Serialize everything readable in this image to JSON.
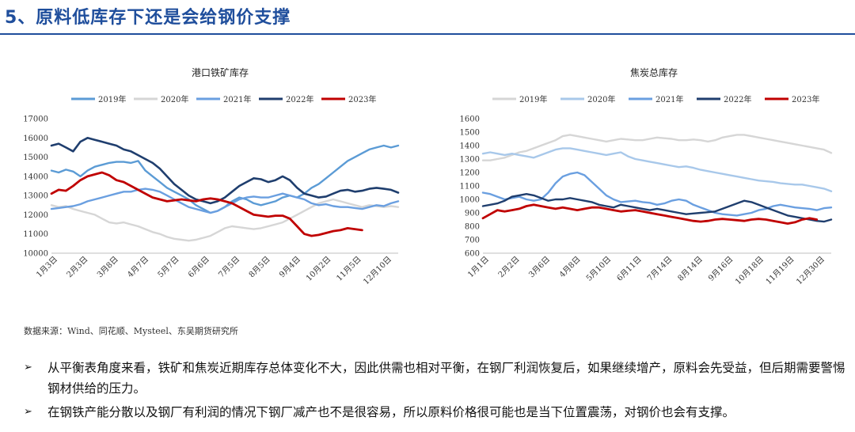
{
  "page": {
    "title": "5、原料低库存下还是会给钢价支撑",
    "source": "数据来源：Wind、同花顺、Mysteel、东吴期货研究所",
    "bullets": [
      {
        "marker": "➢",
        "text": "从平衡表角度来看，铁矿和焦炭近期库存总体变化不大，因此供需也相对平衡，在钢厂利润恢复后，如果继续增产，原料会先受益，但后期需要警惕钢材供给的压力。"
      },
      {
        "marker": "➢",
        "text": "在钢铁产能分散以及钢厂有利润的情况下钢厂减产也不是很容易，所以原料价格很可能也是当下位置震荡，对钢价也会有支撑。"
      }
    ]
  },
  "chart_data": [
    {
      "type": "line",
      "title": "港口铁矿库存",
      "xlabel": "",
      "ylabel": "",
      "ylim": [
        10000,
        17000
      ],
      "yticks": [
        10000,
        11000,
        12000,
        13000,
        14000,
        15000,
        16000,
        17000
      ],
      "xticks": [
        "1月3日",
        "2月3日",
        "3月8日",
        "4月7日",
        "5月7日",
        "6月6日",
        "7月5日",
        "8月5日",
        "9月4日",
        "10月2日",
        "11月5日",
        "12月10日"
      ],
      "legend_position": "top",
      "grid": false,
      "series": [
        {
          "name": "2019年",
          "color": "#5b9bd5",
          "width": 2.4,
          "values": [
            14300,
            14200,
            14350,
            14250,
            14000,
            14300,
            14500,
            14600,
            14700,
            14750,
            14750,
            14700,
            14800,
            14300,
            14000,
            13700,
            13400,
            13200,
            13000,
            12800,
            12500,
            12300,
            12100,
            12200,
            12400,
            12700,
            12900,
            12800,
            12600,
            12500,
            12600,
            12700,
            12900,
            13000,
            12900,
            13100,
            13400,
            13600,
            13900,
            14200,
            14500,
            14800,
            15000,
            15200,
            15400,
            15500,
            15600,
            15500,
            15600
          ]
        },
        {
          "name": "2020年",
          "color": "#d6d6d6",
          "width": 2.4,
          "values": [
            12500,
            12400,
            12450,
            12300,
            12200,
            12100,
            12000,
            11800,
            11600,
            11550,
            11600,
            11500,
            11400,
            11250,
            11100,
            11000,
            10850,
            10750,
            10700,
            10650,
            10700,
            10800,
            10900,
            11100,
            11300,
            11400,
            11350,
            11300,
            11250,
            11300,
            11400,
            11500,
            11600,
            11800,
            12000,
            12200,
            12400,
            12600,
            12700,
            12800,
            12700,
            12600,
            12500,
            12400,
            12500,
            12450,
            12400,
            12450,
            12400
          ]
        },
        {
          "name": "2021年",
          "color": "#6a9fe0",
          "width": 2.4,
          "values": [
            12300,
            12350,
            12400,
            12450,
            12550,
            12700,
            12800,
            12900,
            13000,
            13100,
            13200,
            13200,
            13300,
            13350,
            13300,
            13200,
            13000,
            12800,
            12600,
            12400,
            12300,
            12200,
            12100,
            12200,
            12400,
            12600,
            12800,
            12900,
            12950,
            12900,
            12900,
            13000,
            13100,
            13000,
            12900,
            12800,
            12600,
            12500,
            12550,
            12450,
            12400,
            12400,
            12350,
            12300,
            12400,
            12500,
            12450,
            12600,
            12700
          ]
        },
        {
          "name": "2022年",
          "color": "#1f3e6e",
          "width": 2.6,
          "values": [
            15600,
            15700,
            15500,
            15300,
            15800,
            16000,
            15900,
            15800,
            15700,
            15600,
            15400,
            15300,
            15100,
            14900,
            14700,
            14400,
            14000,
            13600,
            13300,
            13000,
            12800,
            12700,
            12600,
            12700,
            12900,
            13200,
            13500,
            13700,
            13900,
            13850,
            13700,
            13800,
            14000,
            13800,
            13400,
            13100,
            13000,
            12900,
            12950,
            13100,
            13250,
            13300,
            13200,
            13250,
            13350,
            13400,
            13350,
            13300,
            13150
          ]
        },
        {
          "name": "2023年",
          "color": "#c00000",
          "width": 2.8,
          "values": [
            13100,
            13300,
            13250,
            13500,
            13800,
            14000,
            14100,
            14200,
            14050,
            13800,
            13700,
            13500,
            13300,
            13100,
            12900,
            12800,
            12700,
            12750,
            12800,
            12750,
            12700,
            12800,
            12850,
            12800,
            12700,
            12600,
            12400,
            12200,
            12000,
            11950,
            11900,
            11950,
            11950,
            11800,
            11400,
            11000,
            10900,
            10950,
            11050,
            11150,
            11200,
            11300,
            11250,
            11200
          ]
        }
      ]
    },
    {
      "type": "line",
      "title": "焦炭总库存",
      "xlabel": "",
      "ylabel": "",
      "ylim": [
        600,
        1600
      ],
      "yticks": [
        600,
        700,
        800,
        900,
        1000,
        1100,
        1200,
        1300,
        1400,
        1500,
        1600
      ],
      "xticks": [
        "1月1日",
        "2月2日",
        "3月6日",
        "4月8日",
        "5月10日",
        "6月11日",
        "7月14日",
        "8月14日",
        "9月16日",
        "10月18日",
        "11月19日",
        "12月30日"
      ],
      "legend_position": "top",
      "grid": false,
      "series": [
        {
          "name": "2019年",
          "color": "#d6d6d6",
          "width": 2.4,
          "values": [
            1290,
            1290,
            1300,
            1310,
            1330,
            1350,
            1360,
            1380,
            1400,
            1420,
            1440,
            1470,
            1480,
            1470,
            1460,
            1450,
            1440,
            1430,
            1440,
            1450,
            1445,
            1440,
            1440,
            1450,
            1460,
            1455,
            1450,
            1440,
            1440,
            1445,
            1440,
            1430,
            1440,
            1460,
            1470,
            1480,
            1480,
            1470,
            1460,
            1450,
            1440,
            1430,
            1420,
            1410,
            1400,
            1390,
            1380,
            1370,
            1345
          ]
        },
        {
          "name": "2020年",
          "color": "#a8c8ea",
          "width": 2.4,
          "values": [
            1340,
            1350,
            1340,
            1330,
            1340,
            1330,
            1320,
            1310,
            1330,
            1350,
            1370,
            1380,
            1380,
            1370,
            1360,
            1350,
            1340,
            1330,
            1340,
            1350,
            1320,
            1300,
            1290,
            1280,
            1270,
            1260,
            1250,
            1240,
            1245,
            1235,
            1220,
            1210,
            1200,
            1190,
            1180,
            1170,
            1160,
            1150,
            1140,
            1135,
            1130,
            1120,
            1115,
            1110,
            1110,
            1100,
            1090,
            1080,
            1060
          ]
        },
        {
          "name": "2021年",
          "color": "#6a9fe0",
          "width": 2.4,
          "values": [
            1050,
            1040,
            1020,
            1000,
            1010,
            1020,
            1000,
            990,
            1000,
            1050,
            1120,
            1170,
            1190,
            1200,
            1180,
            1130,
            1080,
            1030,
            1000,
            980,
            985,
            990,
            980,
            975,
            960,
            970,
            990,
            1000,
            990,
            960,
            940,
            920,
            900,
            890,
            885,
            880,
            890,
            900,
            920,
            930,
            950,
            960,
            950,
            940,
            935,
            930,
            920,
            935,
            940
          ]
        },
        {
          "name": "2022年",
          "color": "#1f3e6e",
          "width": 2.4,
          "values": [
            950,
            960,
            970,
            990,
            1020,
            1030,
            1040,
            1030,
            1010,
            990,
            1000,
            1000,
            1010,
            1000,
            990,
            980,
            960,
            950,
            940,
            960,
            950,
            940,
            930,
            920,
            930,
            920,
            910,
            900,
            890,
            895,
            900,
            905,
            910,
            930,
            950,
            970,
            990,
            980,
            960,
            940,
            920,
            900,
            880,
            870,
            860,
            850,
            840,
            835,
            850
          ]
        },
        {
          "name": "2023年",
          "color": "#c00000",
          "width": 2.8,
          "values": [
            860,
            890,
            920,
            910,
            920,
            930,
            950,
            960,
            950,
            940,
            930,
            940,
            930,
            920,
            930,
            940,
            940,
            930,
            920,
            910,
            915,
            920,
            910,
            900,
            890,
            880,
            870,
            860,
            850,
            840,
            835,
            840,
            850,
            855,
            850,
            845,
            840,
            850,
            855,
            850,
            840,
            830,
            820,
            830,
            850,
            860,
            850
          ]
        }
      ]
    }
  ]
}
